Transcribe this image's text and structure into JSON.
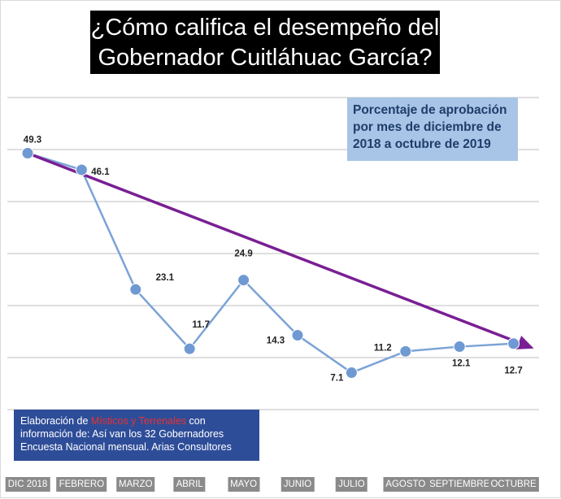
{
  "title": {
    "line1": "¿Cómo califica el desempeño del",
    "line2": "Gobernador Cuitláhuac García?"
  },
  "subtitle": {
    "line1": "Porcentaje de aprobación",
    "line2": "por mes de diciembre de",
    "line3": "2018 a octubre de 2019"
  },
  "credit": {
    "prefix": "Elaboración de ",
    "source_name": "Místicos y Terrenales",
    "suffix": " con",
    "line2": "información de: Así van los 32 Gobernadores",
    "line3": "Encuesta Nacional mensual. Arias Consultores"
  },
  "colors": {
    "series_line": "#7ba3d6",
    "series_marker": "#6f99d2",
    "trend_arrow": "#7a1f93",
    "grid": "#bfbfbf",
    "title_bg": "#000000",
    "subtitle_bg": "#a8c4e6",
    "credit_bg": "#2e4d99",
    "credit_highlight": "#e8312f",
    "tick_label_bg": "#8a8a8a"
  },
  "chart_data": {
    "type": "line",
    "categories": [
      "DIC 2018",
      "FEBRERO",
      "MARZO",
      "ABRIL",
      "MAYO",
      "JUNIO",
      "JULIO",
      "AGOSTO",
      "SEPTIEMBRE",
      "OCTUBRE"
    ],
    "values": [
      49.3,
      46.1,
      23.1,
      11.7,
      24.9,
      14.3,
      7.1,
      11.2,
      12.1,
      12.7
    ],
    "value_labels": [
      "49.3",
      "46.1",
      "23.1",
      "11.7",
      "24.9",
      "14.3",
      "7.1",
      "11.2",
      "12.1",
      "12.7"
    ],
    "ylim": [
      0,
      60
    ],
    "grid": true,
    "trend_arrow": {
      "from_category": "DIC 2018",
      "from_value": 49.3,
      "to_category": "OCTUBRE",
      "to_value": 12.7
    }
  }
}
